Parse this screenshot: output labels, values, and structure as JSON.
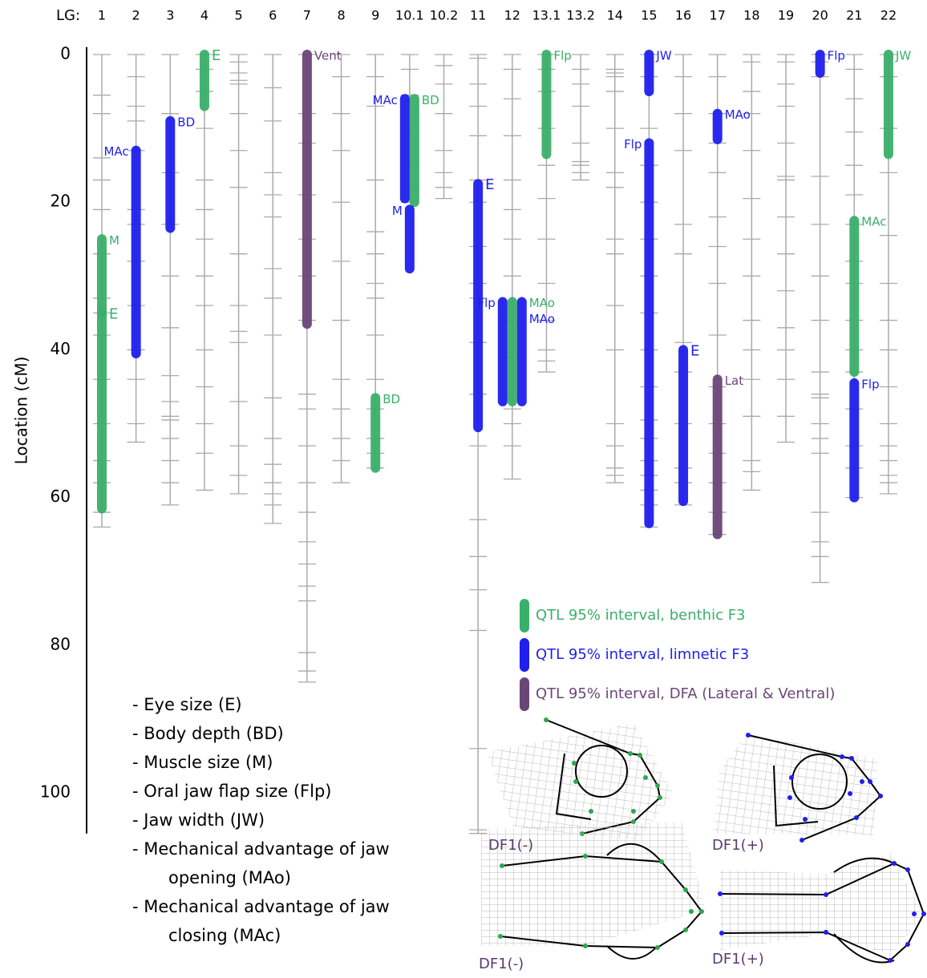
{
  "chart_data": {
    "type": "linkage-map",
    "x_prefix": "LG:",
    "ylabel": "Location (cM)",
    "ylim": [
      -1,
      105.5
    ],
    "yticks": [
      0,
      20,
      40,
      60,
      80,
      100
    ],
    "categories": [
      "1",
      "2",
      "3",
      "4",
      "5",
      "6",
      "7",
      "8",
      "9",
      "10.1",
      "10.2",
      "11",
      "12",
      "13.1",
      "13.2",
      "14",
      "15",
      "16",
      "17",
      "18",
      "19",
      "20",
      "21",
      "22"
    ],
    "lengths": [
      64,
      52.5,
      61,
      59,
      59.5,
      63.5,
      85,
      58,
      56.5,
      20,
      19.5,
      105.5,
      57.5,
      43,
      17,
      58,
      64,
      61,
      65,
      59,
      52.5,
      71.5,
      60,
      59.5
    ],
    "markers": [
      [
        0,
        5.5,
        8,
        14,
        17,
        21,
        27,
        33,
        35,
        38,
        44,
        50,
        55,
        58,
        62,
        64
      ],
      [
        0,
        3,
        7,
        9,
        13,
        21,
        23,
        28,
        34,
        40,
        44,
        50,
        52.5
      ],
      [
        0,
        8,
        16,
        23,
        30,
        37,
        43.5,
        47,
        49,
        49.5,
        52,
        55,
        58,
        61
      ],
      [
        0,
        2,
        5,
        10,
        17,
        21,
        25,
        30,
        34,
        40,
        45,
        50,
        54,
        59
      ],
      [
        0,
        1,
        2.5,
        3.5,
        4,
        8,
        13,
        18,
        27,
        34,
        37.5,
        39,
        47,
        53,
        57,
        59.5
      ],
      [
        0,
        4.5,
        9,
        16,
        19,
        22,
        29,
        33,
        38,
        46.5,
        52,
        55.5,
        58,
        59.5,
        61,
        63.5
      ],
      [
        0,
        8,
        12,
        19,
        25,
        30,
        36,
        46,
        48,
        53,
        58,
        62,
        66,
        69,
        72,
        74,
        81,
        83.5,
        85
      ],
      [
        0,
        3,
        8,
        13,
        20,
        28,
        36,
        44,
        48,
        52,
        55,
        58
      ],
      [
        0,
        3,
        7,
        17,
        24,
        27,
        31,
        33,
        38,
        44,
        48,
        52,
        54,
        56
      ],
      [
        0,
        2,
        5.5,
        11,
        15,
        18,
        20
      ],
      [
        0,
        1.5,
        4,
        8,
        13,
        16,
        18,
        19.5
      ],
      [
        0,
        0.5,
        4,
        7,
        11,
        17,
        20,
        26,
        31,
        33,
        39,
        46,
        53,
        63,
        68,
        72.5,
        78,
        94,
        105,
        105.5
      ],
      [
        0,
        2,
        6,
        11,
        17,
        21,
        25,
        30,
        36,
        41,
        46,
        48,
        50,
        53,
        57.5
      ],
      [
        0,
        2,
        5,
        10,
        15,
        19.5,
        25,
        31,
        36,
        40,
        41.5,
        43
      ],
      [
        0,
        2,
        4,
        7,
        12,
        14.5,
        15,
        16,
        17
      ],
      [
        0,
        2,
        2.5,
        3,
        5,
        10,
        16,
        18,
        25,
        27,
        34,
        40,
        50,
        53,
        56,
        57,
        58
      ],
      [
        0,
        3,
        10,
        15,
        20,
        25,
        30,
        35,
        40,
        45,
        49.5,
        52,
        55,
        57,
        59,
        61,
        64
      ],
      [
        0,
        3,
        8,
        13,
        23,
        27,
        39,
        43,
        50,
        56,
        58,
        61
      ],
      [
        0,
        3,
        8,
        12,
        16,
        22,
        26,
        31,
        38,
        45,
        50,
        54,
        58,
        62,
        65
      ],
      [
        0,
        1,
        5,
        8,
        13,
        19.5,
        25,
        30,
        36,
        40,
        44,
        49,
        55,
        56.5,
        59
      ],
      [
        0,
        1,
        4,
        7,
        12,
        16.5,
        17,
        22,
        27,
        32,
        37,
        40,
        44,
        49,
        52.5
      ],
      [
        0,
        1,
        3,
        16.5,
        23,
        30,
        36,
        43,
        46,
        46.5,
        50,
        52,
        54,
        62,
        66,
        68,
        71.5
      ],
      [
        0,
        2,
        6,
        10.5,
        15,
        19,
        23,
        28,
        31,
        36,
        40,
        43,
        48,
        53,
        56,
        60
      ],
      [
        0,
        3,
        10,
        16,
        24.5,
        31,
        36,
        40,
        45,
        50,
        53,
        55,
        57,
        58,
        59.5
      ]
    ],
    "groups": [
      {
        "name": "QTL 95% interval, benthic F3",
        "color": "#3aaf6a"
      },
      {
        "name": "QTL 95% interval, limnetic F3",
        "color": "#1f1fee"
      },
      {
        "name": "QTL 95% interval, DFA (Lateral & Ventral)",
        "color": "#6a4678"
      }
    ],
    "qtls": [
      {
        "lg": "1",
        "trait": "M",
        "group": 0,
        "start": 25,
        "end": 35
      },
      {
        "lg": "1",
        "trait": "E",
        "group": 0,
        "start": 35,
        "end": 61.5
      },
      {
        "lg": "2",
        "trait": "MAc",
        "group": 1,
        "start": 13,
        "end": 40.5
      },
      {
        "lg": "3",
        "trait": "BD",
        "group": 1,
        "start": 9,
        "end": 23.5
      },
      {
        "lg": "4",
        "trait": "E",
        "group": 0,
        "start": 0,
        "end": 7
      },
      {
        "lg": "7",
        "trait": "Vent",
        "group": 2,
        "start": 0,
        "end": 36.5
      },
      {
        "lg": "9",
        "trait": "BD",
        "group": 0,
        "start": 46.5,
        "end": 56
      },
      {
        "lg": "10.1",
        "trait": "MAc",
        "group": 1,
        "start": 6,
        "end": 19.5
      },
      {
        "lg": "10.1",
        "trait": "BD",
        "group": 0,
        "start": 6,
        "end": 20
      },
      {
        "lg": "10.1",
        "trait": "M",
        "group": 1,
        "start": 21,
        "end": 29
      },
      {
        "lg": "11",
        "trait": "E",
        "group": 1,
        "start": 17.5,
        "end": 50.5
      },
      {
        "lg": "12",
        "trait": "Flp",
        "group": 1,
        "start": 33.5,
        "end": 47
      },
      {
        "lg": "12",
        "trait": "MAo",
        "group": 0,
        "start": 33.5,
        "end": 47
      },
      {
        "lg": "12",
        "trait": "MAo",
        "group": 1,
        "start": 33.5,
        "end": 47
      },
      {
        "lg": "13.1",
        "trait": "Flp",
        "group": 0,
        "start": 0,
        "end": 13.5
      },
      {
        "lg": "15",
        "trait": "JW",
        "group": 1,
        "start": 0,
        "end": 5
      },
      {
        "lg": "15",
        "trait": "Flp",
        "group": 1,
        "start": 12,
        "end": 63.5
      },
      {
        "lg": "16",
        "trait": "E",
        "group": 1,
        "start": 40,
        "end": 60.5
      },
      {
        "lg": "17",
        "trait": "MAo",
        "group": 1,
        "start": 8,
        "end": 11.5
      },
      {
        "lg": "17",
        "trait": "Lat",
        "group": 2,
        "start": 44,
        "end": 65
      },
      {
        "lg": "20",
        "trait": "Flp",
        "group": 1,
        "start": 0,
        "end": 2.5
      },
      {
        "lg": "21",
        "trait": "MAc",
        "group": 0,
        "start": 22.5,
        "end": 43
      },
      {
        "lg": "21",
        "trait": "Flp",
        "group": 1,
        "start": 44.5,
        "end": 60
      },
      {
        "lg": "22",
        "trait": "JW",
        "group": 0,
        "start": 0,
        "end": 13.5
      }
    ],
    "traits": [
      [
        "- Eye size (E)"
      ],
      [
        "- Body depth (BD)"
      ],
      [
        "- Muscle size (M)"
      ],
      [
        "- Oral jaw flap size (Flp)"
      ],
      [
        "- Jaw width (JW)"
      ],
      [
        "- Mechanical advantage of jaw",
        "opening (MAo)"
      ],
      [
        "- Mechanical advantage of jaw",
        "closing (MAc)"
      ]
    ],
    "shape_labels": {
      "lateral": [
        "DF1(-)",
        "DF1(+)"
      ],
      "ventral": [
        "DF1(-)",
        "DF1(+)"
      ]
    }
  }
}
